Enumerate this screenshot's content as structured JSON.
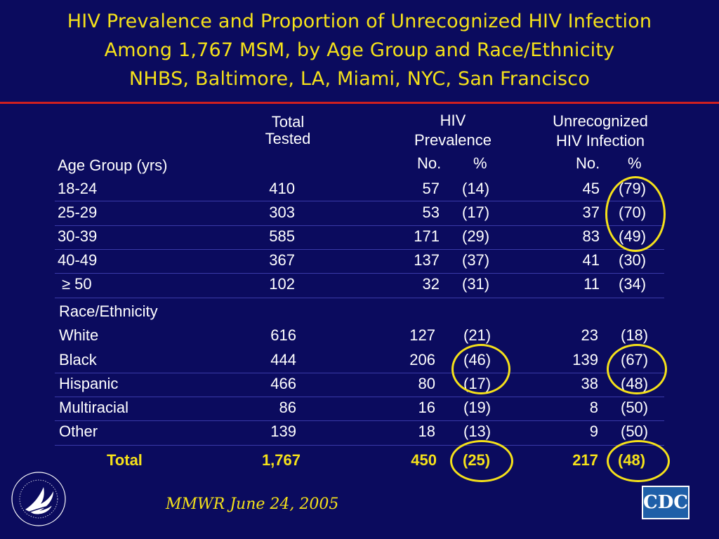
{
  "title": {
    "line1": "HIV Prevalence and Proportion of Unrecognized HIV Infection",
    "line2": "Among 1,767 MSM, by Age Group and Race/Ethnicity",
    "line3": "NHBS, Baltimore, LA, Miami, NYC, San Francisco"
  },
  "headers": {
    "total_l1": "Total",
    "total_l2": "Tested",
    "prev_l1": "HIV",
    "prev_l2": "Prevalence",
    "prev_no": "No.",
    "prev_pct": "%",
    "unrec_l1": "Unrecognized",
    "unrec_l2": "HIV Infection",
    "unrec_no": "No.",
    "unrec_pct": "%",
    "age_group": "Age Group (yrs)",
    "race": "Race/Ethnicity"
  },
  "age_rows": [
    {
      "label": "18-24",
      "total": "410",
      "prev_no": "57",
      "prev_pct": "(14)",
      "unrec_no": "45",
      "unrec_pct": "(79)"
    },
    {
      "label": "25-29",
      "total": "303",
      "prev_no": "53",
      "prev_pct": "(17)",
      "unrec_no": "37",
      "unrec_pct": "(70)"
    },
    {
      "label": "30-39",
      "total": "585",
      "prev_no": "171",
      "prev_pct": "(29)",
      "unrec_no": "83",
      "unrec_pct": "(49)"
    },
    {
      "label": "40-49",
      "total": "367",
      "prev_no": "137",
      "prev_pct": "(37)",
      "unrec_no": "41",
      "unrec_pct": "(30)"
    },
    {
      "label": "≥ 50",
      "total": "102",
      "prev_no": "32",
      "prev_pct": "(31)",
      "unrec_no": "11",
      "unrec_pct": "(34)"
    }
  ],
  "race_rows": [
    {
      "label": "White",
      "total": "616",
      "prev_no": "127",
      "prev_pct": "(21)",
      "unrec_no": "23",
      "unrec_pct": "(18)"
    },
    {
      "label": "Black",
      "total": "444",
      "prev_no": "206",
      "prev_pct": "(46)",
      "unrec_no": "139",
      "unrec_pct": "(67)"
    },
    {
      "label": "Hispanic",
      "total": "466",
      "prev_no": "80",
      "prev_pct": "(17)",
      "unrec_no": "38",
      "unrec_pct": "(48)"
    },
    {
      "label": "Multiracial",
      "total": "86",
      "prev_no": "16",
      "prev_pct": "(19)",
      "unrec_no": "8",
      "unrec_pct": "(50)"
    },
    {
      "label": "Other",
      "total": "139",
      "prev_no": "18",
      "prev_pct": "(13)",
      "unrec_no": "9",
      "unrec_pct": "(50)"
    }
  ],
  "total_row": {
    "label": "Total",
    "total": "1,767",
    "prev_no": "450",
    "prev_pct": "(25)",
    "unrec_no": "217",
    "unrec_pct": "(48)"
  },
  "citation": "MMWR June 24, 2005",
  "logos": {
    "hhs_seal": "DEPARTMENT OF HEALTH & HUMAN SERVICES · USA",
    "cdc": "CDC"
  },
  "colors": {
    "background": "#0b0b5e",
    "title": "#f5e11a",
    "rule": "#d02020",
    "highlight_circle": "#f5e11a"
  }
}
